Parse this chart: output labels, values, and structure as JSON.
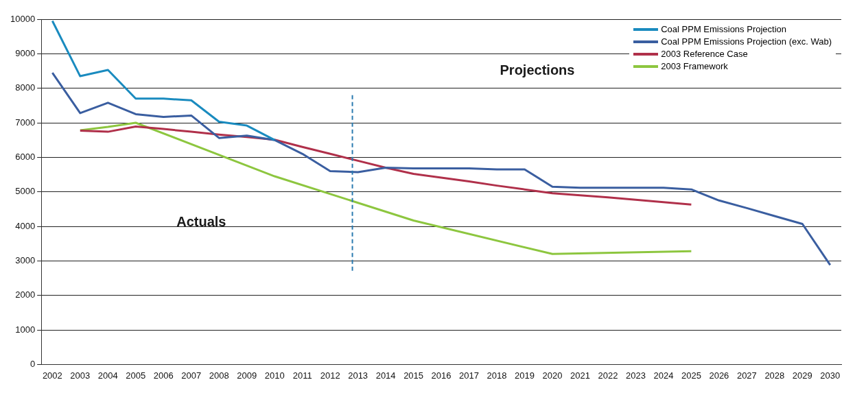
{
  "chart_data": {
    "type": "line",
    "x": [
      2002,
      2003,
      2004,
      2005,
      2006,
      2007,
      2008,
      2009,
      2010,
      2011,
      2012,
      2013,
      2014,
      2015,
      2016,
      2017,
      2018,
      2019,
      2020,
      2021,
      2022,
      2023,
      2024,
      2025,
      2026,
      2027,
      2028,
      2029,
      2030
    ],
    "series": [
      {
        "name": "Coal PPM Emissions Projection",
        "color": "#1a8bbf",
        "x": [
          2002,
          2003,
          2004,
          2005,
          2006,
          2007,
          2008,
          2009,
          2010
        ],
        "values": [
          9950,
          8350,
          8530,
          7700,
          7700,
          7650,
          7030,
          6920,
          6500
        ]
      },
      {
        "name": "Coal PPM Emissions Projection (exc. Wab)",
        "color": "#3a5ea0",
        "values": [
          8450,
          7280,
          7580,
          7250,
          7170,
          7210,
          6560,
          6630,
          6500,
          6100,
          5600,
          5570,
          5700,
          5680,
          5680,
          5680,
          5650,
          5650,
          5150,
          5120,
          5120,
          5120,
          5120,
          5070,
          4750,
          4530,
          4300,
          4070,
          2880
        ]
      },
      {
        "name": "2003 Reference Case",
        "color": "#b0304a",
        "x": [
          2003,
          2004,
          2005,
          2006,
          2007,
          2008,
          2009,
          2010,
          2011,
          2012,
          2013,
          2014,
          2015,
          2016,
          2017,
          2018,
          2019,
          2020,
          2021,
          2022,
          2023,
          2024,
          2025
        ],
        "values": [
          6770,
          6740,
          6890,
          6820,
          6740,
          6660,
          6590,
          6510,
          6300,
          6100,
          5900,
          5700,
          5520,
          5410,
          5300,
          5180,
          5070,
          4960,
          4900,
          4840,
          4770,
          4700,
          4630
        ]
      },
      {
        "name": "2003 Framework",
        "color": "#8dc63f",
        "x": [
          2003,
          2004,
          2005,
          2010,
          2015,
          2020,
          2025
        ],
        "values": [
          6780,
          6880,
          7000,
          5450,
          4170,
          3200,
          3280
        ]
      }
    ],
    "xlim": [
      2001.6,
      2030.4
    ],
    "xticks": [
      2002,
      2003,
      2004,
      2005,
      2006,
      2007,
      2008,
      2009,
      2010,
      2011,
      2012,
      2013,
      2014,
      2015,
      2016,
      2017,
      2018,
      2019,
      2020,
      2021,
      2022,
      2023,
      2024,
      2025,
      2026,
      2027,
      2028,
      2029,
      2030
    ],
    "ylim": [
      0,
      10000
    ],
    "yticks": [
      0,
      1000,
      2000,
      3000,
      4000,
      5000,
      6000,
      7000,
      8000,
      9000,
      10000
    ],
    "grid": "y",
    "legend": "top right",
    "marker": "none",
    "line_style": "solid",
    "ref_lines": [
      {
        "axis": "x",
        "value": 2012.8,
        "color": "#2a7ab0",
        "line_style": "dashed"
      }
    ],
    "annotations": [
      "Actuals",
      "Projections"
    ]
  }
}
